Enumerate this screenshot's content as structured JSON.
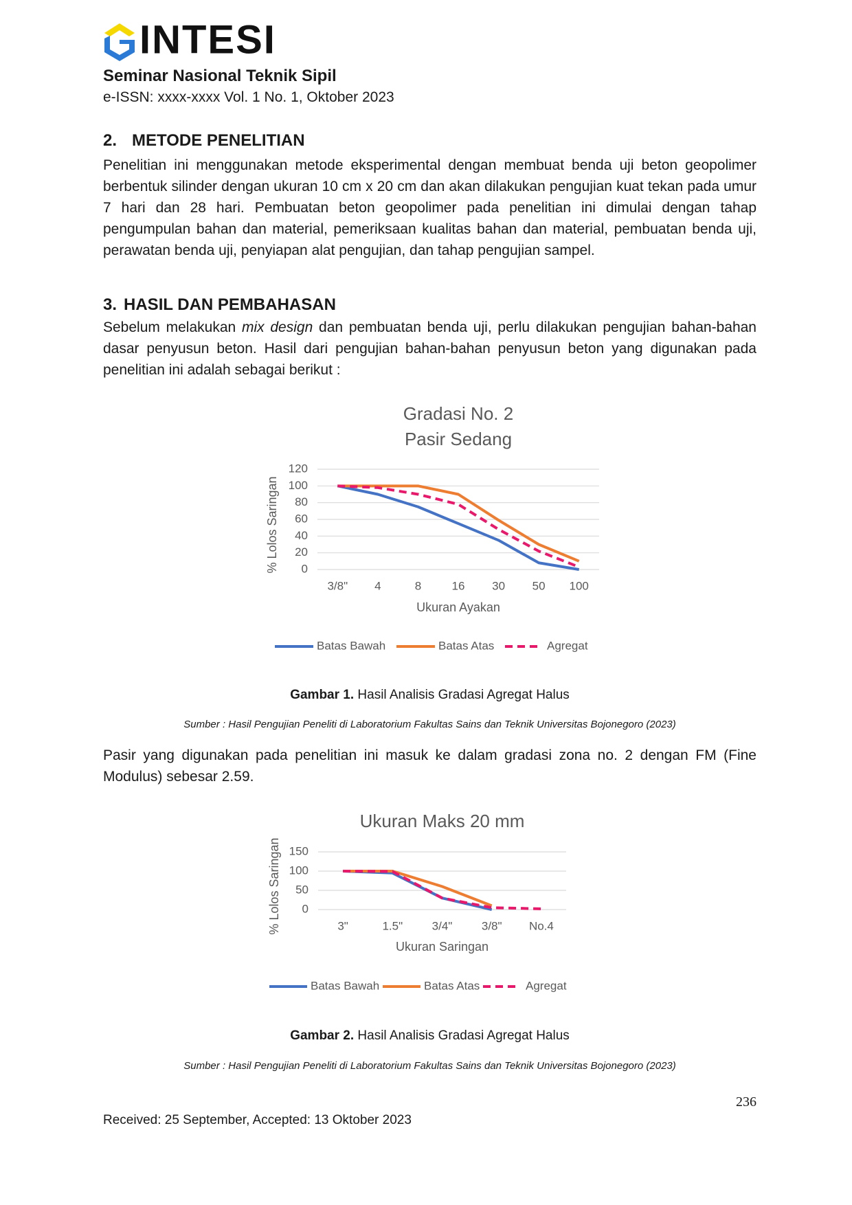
{
  "header": {
    "logo_text": "INTESI",
    "journal": "Seminar Nasional Teknik Sipil",
    "issn": "e-ISSN: xxxx-xxxx Vol. 1 No. 1, Oktober 2023"
  },
  "sections": [
    {
      "number": "2.",
      "title": "METODE PENELITIAN",
      "paragraph": "Penelitian ini menggunakan metode eksperimental dengan membuat benda uji beton geopolimer berbentuk silinder dengan ukuran 10 cm x 20 cm dan akan dilakukan pengujian kuat tekan pada umur 7 hari dan 28 hari. Pembuatan beton geopolimer pada penelitian ini dimulai dengan tahap pengumpulan bahan dan material, pemeriksaan kualitas bahan dan material, pembuatan benda uji, perawatan benda uji, penyiapan alat pengujian, dan tahap pengujian sampel."
    },
    {
      "number": "3.",
      "title": "HASIL DAN PEMBAHASAN",
      "paragraph_parts": [
        "Sebelum melakukan ",
        "mix design",
        " dan pembuatan benda uji, perlu dilakukan pengujian bahan-bahan dasar penyusun beton. Hasil dari pengujian bahan-bahan penyusun beton yang digunakan pada penelitian ini adalah sebagai berikut :"
      ]
    }
  ],
  "chart_data": [
    {
      "type": "line",
      "title": "Gradasi No. 2",
      "subtitle": "Pasir Sedang",
      "x_label": "Ukuran Ayakan",
      "y_label": "% Lolos Saringan",
      "categories": [
        "3/8\"",
        "4",
        "8",
        "16",
        "30",
        "50",
        "100"
      ],
      "ylim": [
        0,
        120
      ],
      "yticks": [
        0,
        20,
        40,
        60,
        80,
        100,
        120
      ],
      "grid": true,
      "series": [
        {
          "name": "Batas Bawah",
          "color": "#4472c4",
          "dashed": false,
          "values": [
            100,
            90,
            75,
            55,
            35,
            8,
            0
          ]
        },
        {
          "name": "Batas Atas",
          "color": "#ed7d31",
          "dashed": false,
          "values": [
            100,
            100,
            100,
            90,
            59,
            30,
            10
          ]
        },
        {
          "name": "Agregat",
          "color": "#e8196b",
          "dashed": true,
          "values": [
            100,
            98,
            90,
            78,
            48,
            22,
            3
          ]
        }
      ]
    },
    {
      "type": "line",
      "title": "Ukuran Maks 20 mm",
      "x_label": "Ukuran Saringan",
      "y_label": "% Lolos Saringan",
      "categories": [
        "3\"",
        "1.5\"",
        "3/4\"",
        "3/8\"",
        "No.4"
      ],
      "ylim": [
        0,
        150
      ],
      "yticks": [
        0,
        50,
        100,
        150
      ],
      "grid": true,
      "series": [
        {
          "name": "Batas Bawah",
          "color": "#4472c4",
          "dashed": false,
          "values": [
            100,
            95,
            30,
            0,
            null
          ]
        },
        {
          "name": "Batas Atas",
          "color": "#ed7d31",
          "dashed": false,
          "values": [
            100,
            100,
            60,
            10,
            null
          ]
        },
        {
          "name": "Agregat",
          "color": "#e8196b",
          "dashed": true,
          "values": [
            100,
            99,
            30,
            5,
            2
          ]
        }
      ]
    }
  ],
  "figures": [
    {
      "caption_label": "Gambar 1.",
      "caption": "Hasil Analisis Gradasi Agregat Halus",
      "source": "Sumber : Hasil Pengujian Peneliti di Laboratorium Fakultas Sains dan Teknik Universitas Bojonegoro (2023)"
    },
    {
      "caption_label": "Gambar 2.",
      "caption": "Hasil Analisis Gradasi Agregat Halus",
      "source": "Sumber : Hasil Pengujian Peneliti di Laboratorium Fakultas Sains dan Teknik Universitas Bojonegoro (2023)"
    }
  ],
  "paragraph_after_figure_1": "Pasir yang digunakan pada penelitian ini masuk ke dalam gradasi zona no. 2 dengan FM (Fine Modulus) sebesar 2.59.",
  "page_number": "236",
  "footer": "Received: 25 September, Accepted: 13 Oktober 2023"
}
